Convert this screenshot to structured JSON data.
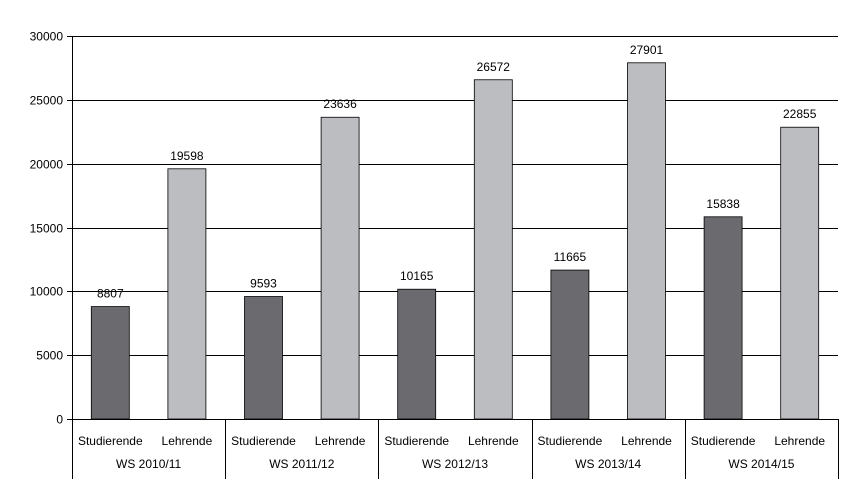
{
  "chart_data": {
    "type": "bar",
    "title": "",
    "xlabel": "",
    "ylabel": "",
    "ylim": [
      0,
      30000
    ],
    "yticks": [
      0,
      5000,
      10000,
      15000,
      20000,
      25000,
      30000
    ],
    "ytick_labels": [
      "0",
      "5000",
      "10000",
      "15000",
      "20000",
      "25000",
      "30000"
    ],
    "grid": "horizontal",
    "legend": "none",
    "groups": [
      "WS 2010/11",
      "WS 2011/12",
      "WS 2012/13",
      "WS 2013/14",
      "WS 2014/15"
    ],
    "categories": [
      "Studierende",
      "Lehrende",
      "Studierende",
      "Lehrende",
      "Studierende",
      "Lehrende",
      "Studierende",
      "Lehrende",
      "Studierende",
      "Lehrende"
    ],
    "values": [
      8807,
      19598,
      9593,
      23636,
      10165,
      26572,
      11665,
      27901,
      15838,
      22855
    ],
    "value_labels": [
      "8807",
      "19598",
      "9593",
      "23636",
      "10165",
      "26572",
      "11665",
      "27901",
      "15838",
      "22855"
    ],
    "colors": {
      "Studierende": "#6b6b6f",
      "Lehrende": "#bcbdc1",
      "bar_outline": "#000000",
      "gridline": "#000000",
      "frame": "#7f7f7f"
    }
  }
}
